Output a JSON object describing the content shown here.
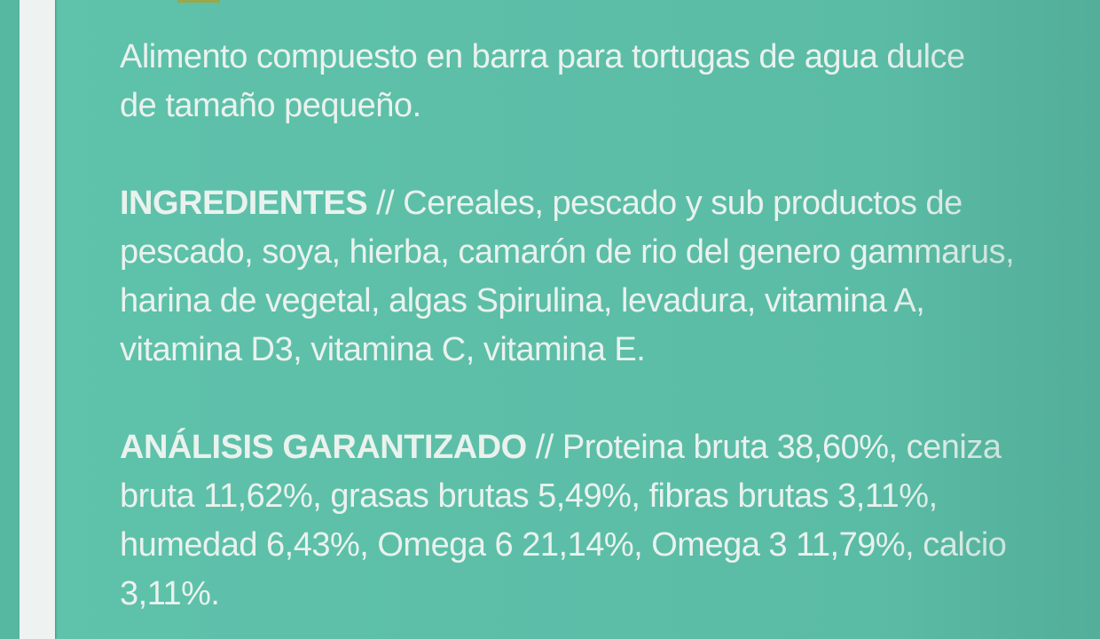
{
  "label": {
    "description": [
      "Alimento compuesto en barra para tortugas de agua dulce",
      "de tamaño pequeño."
    ],
    "ingredients_heading": "INGREDIENTES",
    "ingredients_lines": [
      "// Cereales, pescado y sub productos de",
      "pescado, soya, hierba, camarón de rio del genero gammarus,",
      "harina de vegetal, algas Spirulina, levadura, vitamina A,",
      "vitamina D3, vitamina C, vitamina E."
    ],
    "analysis_heading": "ANÁLISIS GARANTIZADO",
    "analysis_lines": [
      "// Proteina bruta 38,60%, ceniza",
      "bruta 11,62%, grasas brutas 5,49%, fibras brutas 3,11%,",
      "humedad 6,43%, Omega 6 21,14%, Omega 3 11,79%, calcio",
      "3,11%."
    ]
  },
  "colors": {
    "background": "#5dbfa8",
    "text": "#eaf2ee",
    "stripe": "#eef3f1"
  }
}
